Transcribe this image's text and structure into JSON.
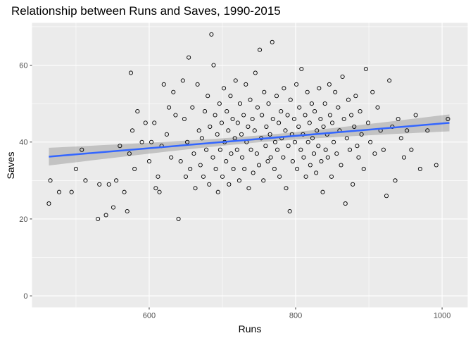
{
  "chart_data": {
    "type": "scatter",
    "title": "Relationship between Runs and Saves, 1990-2015",
    "xlabel": "Runs",
    "ylabel": "Saves",
    "xlim": [
      440,
      1035
    ],
    "ylim": [
      -3,
      71
    ],
    "x_ticks": [
      600,
      800,
      1000
    ],
    "y_ticks": [
      0,
      20,
      40,
      60
    ],
    "x_minor_ticks": [
      500,
      700,
      900
    ],
    "y_minor_ticks": [
      10,
      30,
      50,
      70
    ],
    "grid": true,
    "legend": "none",
    "colors": {
      "panel": "#ebebeb",
      "grid": "#ffffff",
      "points": "#000000",
      "trend": "#3366ff",
      "band": "#999999"
    },
    "trend": {
      "method": "linear",
      "x": [
        463,
        1010
      ],
      "y": [
        36.2,
        45.0
      ],
      "se_band_width_at_ends": [
        2.3,
        2.2
      ],
      "se_band_width_min": 0.9,
      "se_band_center_x": 750
    },
    "series": [
      {
        "points": [
          [
            463,
            24
          ],
          [
            465,
            30
          ],
          [
            477,
            27
          ],
          [
            494,
            27
          ],
          [
            500,
            33
          ],
          [
            508,
            38
          ],
          [
            513,
            30
          ],
          [
            530,
            20
          ],
          [
            532,
            29
          ],
          [
            541,
            21
          ],
          [
            545,
            29
          ],
          [
            551,
            23
          ],
          [
            555,
            30
          ],
          [
            560,
            39
          ],
          [
            566,
            27
          ],
          [
            570,
            22
          ],
          [
            573,
            37
          ],
          [
            575,
            58
          ],
          [
            577,
            43
          ],
          [
            580,
            33
          ],
          [
            584,
            48
          ],
          [
            590,
            40
          ],
          [
            595,
            45
          ],
          [
            600,
            35
          ],
          [
            603,
            40
          ],
          [
            607,
            45
          ],
          [
            609,
            28
          ],
          [
            612,
            31
          ],
          [
            614,
            27
          ],
          [
            617,
            39
          ],
          [
            620,
            55
          ],
          [
            624,
            42
          ],
          [
            627,
            49
          ],
          [
            630,
            36
          ],
          [
            633,
            53
          ],
          [
            636,
            47
          ],
          [
            640,
            20
          ],
          [
            643,
            35
          ],
          [
            646,
            56
          ],
          [
            648,
            46
          ],
          [
            650,
            31
          ],
          [
            652,
            40
          ],
          [
            654,
            62
          ],
          [
            656,
            33
          ],
          [
            659,
            49
          ],
          [
            661,
            37
          ],
          [
            663,
            28
          ],
          [
            666,
            55
          ],
          [
            668,
            43
          ],
          [
            670,
            34
          ],
          [
            672,
            41
          ],
          [
            674,
            31
          ],
          [
            676,
            48
          ],
          [
            678,
            38
          ],
          [
            680,
            52
          ],
          [
            682,
            29
          ],
          [
            683,
            44
          ],
          [
            685,
            68
          ],
          [
            687,
            36
          ],
          [
            688,
            60
          ],
          [
            690,
            47
          ],
          [
            691,
            33
          ],
          [
            693,
            42
          ],
          [
            694,
            27
          ],
          [
            696,
            50
          ],
          [
            697,
            38
          ],
          [
            699,
            45
          ],
          [
            700,
            31
          ],
          [
            702,
            54
          ],
          [
            703,
            40
          ],
          [
            705,
            35
          ],
          [
            706,
            48
          ],
          [
            708,
            43
          ],
          [
            709,
            29
          ],
          [
            711,
            52
          ],
          [
            712,
            37
          ],
          [
            714,
            46
          ],
          [
            715,
            33
          ],
          [
            717,
            41
          ],
          [
            718,
            56
          ],
          [
            720,
            38
          ],
          [
            721,
            45
          ],
          [
            723,
            30
          ],
          [
            724,
            50
          ],
          [
            726,
            42
          ],
          [
            727,
            36
          ],
          [
            729,
            47
          ],
          [
            730,
            33
          ],
          [
            732,
            55
          ],
          [
            733,
            40
          ],
          [
            735,
            44
          ],
          [
            736,
            28
          ],
          [
            738,
            51
          ],
          [
            739,
            38
          ],
          [
            741,
            46
          ],
          [
            742,
            32
          ],
          [
            744,
            43
          ],
          [
            745,
            58
          ],
          [
            747,
            37
          ],
          [
            748,
            49
          ],
          [
            750,
            34
          ],
          [
            751,
            64
          ],
          [
            753,
            41
          ],
          [
            754,
            47
          ],
          [
            756,
            30
          ],
          [
            757,
            53
          ],
          [
            759,
            39
          ],
          [
            760,
            44
          ],
          [
            762,
            35
          ],
          [
            763,
            50
          ],
          [
            765,
            42
          ],
          [
            766,
            36
          ],
          [
            768,
            66
          ],
          [
            769,
            46
          ],
          [
            771,
            33
          ],
          [
            772,
            40
          ],
          [
            774,
            52
          ],
          [
            775,
            38
          ],
          [
            777,
            45
          ],
          [
            778,
            31
          ],
          [
            780,
            48
          ],
          [
            781,
            41
          ],
          [
            783,
            36
          ],
          [
            784,
            54
          ],
          [
            786,
            43
          ],
          [
            787,
            28
          ],
          [
            789,
            47
          ],
          [
            790,
            39
          ],
          [
            792,
            22
          ],
          [
            793,
            51
          ],
          [
            795,
            42
          ],
          [
            796,
            35
          ],
          [
            798,
            46
          ],
          [
            799,
            40
          ],
          [
            801,
            55
          ],
          [
            802,
            33
          ],
          [
            804,
            44
          ],
          [
            805,
            49
          ],
          [
            807,
            38
          ],
          [
            808,
            59
          ],
          [
            810,
            42
          ],
          [
            811,
            36
          ],
          [
            813,
            47
          ],
          [
            814,
            31
          ],
          [
            816,
            53
          ],
          [
            817,
            40
          ],
          [
            819,
            45
          ],
          [
            820,
            34
          ],
          [
            822,
            50
          ],
          [
            823,
            41
          ],
          [
            825,
            37
          ],
          [
            826,
            48
          ],
          [
            828,
            32
          ],
          [
            829,
            43
          ],
          [
            831,
            39
          ],
          [
            832,
            54
          ],
          [
            834,
            46
          ],
          [
            835,
            35
          ],
          [
            837,
            27
          ],
          [
            838,
            44
          ],
          [
            840,
            50
          ],
          [
            841,
            38
          ],
          [
            843,
            42
          ],
          [
            844,
            36
          ],
          [
            846,
            55
          ],
          [
            847,
            47
          ],
          [
            849,
            31
          ],
          [
            850,
            45
          ],
          [
            852,
            40
          ],
          [
            854,
            53
          ],
          [
            856,
            37
          ],
          [
            858,
            49
          ],
          [
            860,
            43
          ],
          [
            862,
            34
          ],
          [
            864,
            57
          ],
          [
            866,
            46
          ],
          [
            868,
            24
          ],
          [
            870,
            41
          ],
          [
            872,
            51
          ],
          [
            874,
            38
          ],
          [
            876,
            47
          ],
          [
            878,
            29
          ],
          [
            880,
            44
          ],
          [
            882,
            52
          ],
          [
            884,
            39
          ],
          [
            886,
            36
          ],
          [
            888,
            48
          ],
          [
            890,
            42
          ],
          [
            893,
            33
          ],
          [
            896,
            59
          ],
          [
            899,
            45
          ],
          [
            902,
            40
          ],
          [
            905,
            53
          ],
          [
            908,
            37
          ],
          [
            912,
            49
          ],
          [
            916,
            43
          ],
          [
            920,
            38
          ],
          [
            924,
            26
          ],
          [
            928,
            56
          ],
          [
            932,
            44
          ],
          [
            936,
            30
          ],
          [
            940,
            46
          ],
          [
            944,
            41
          ],
          [
            948,
            36
          ],
          [
            952,
            43
          ],
          [
            958,
            38
          ],
          [
            964,
            47
          ],
          [
            970,
            33
          ],
          [
            980,
            43
          ],
          [
            992,
            34
          ],
          [
            1008,
            46
          ]
        ]
      }
    ]
  }
}
